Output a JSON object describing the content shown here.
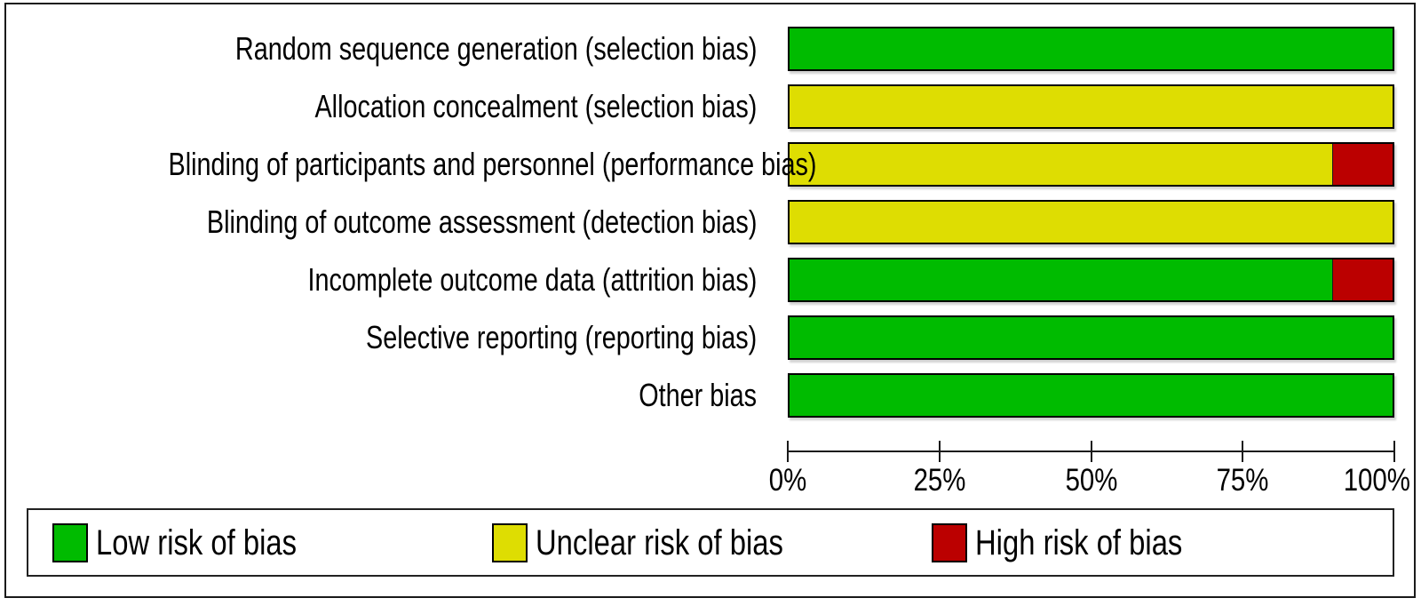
{
  "figure": {
    "kind": "risk-of-bias-graph"
  },
  "colors": {
    "low": "#00BB00",
    "unclear": "#DEDD02",
    "high": "#BB0000",
    "bar_border": "#000000",
    "frame_border": "#1a1a1a",
    "background": "#ffffff",
    "text": "#000000"
  },
  "chart_data": {
    "type": "bar",
    "orientation": "horizontal",
    "stacked": true,
    "unit": "percent",
    "categories": [
      "Random sequence generation (selection bias)",
      "Allocation concealment (selection bias)",
      "Blinding of participants and personnel (performance bias)",
      "Blinding of outcome assessment (detection bias)",
      "Incomplete outcome data (attrition bias)",
      "Selective reporting (reporting bias)",
      "Other bias"
    ],
    "series": [
      {
        "name": "Low risk of bias",
        "key": "low",
        "values": [
          100,
          0,
          0,
          0,
          90,
          100,
          100
        ]
      },
      {
        "name": "Unclear risk of bias",
        "key": "unclear",
        "values": [
          0,
          100,
          90,
          100,
          0,
          0,
          0
        ]
      },
      {
        "name": "High risk of bias",
        "key": "high",
        "values": [
          0,
          0,
          10,
          0,
          10,
          0,
          0
        ]
      }
    ],
    "x_axis": {
      "range": [
        0,
        100
      ],
      "tick_labels": [
        "0%",
        "25%",
        "50%",
        "75%",
        "100%"
      ],
      "tick_positions": [
        0,
        25,
        50,
        75,
        100
      ]
    },
    "legend": [
      {
        "label": "Low risk of bias",
        "key": "low"
      },
      {
        "label": "Unclear risk of bias",
        "key": "unclear"
      },
      {
        "label": "High risk of bias",
        "key": "high"
      }
    ],
    "grid": false,
    "legend_position": "bottom-boxed"
  }
}
